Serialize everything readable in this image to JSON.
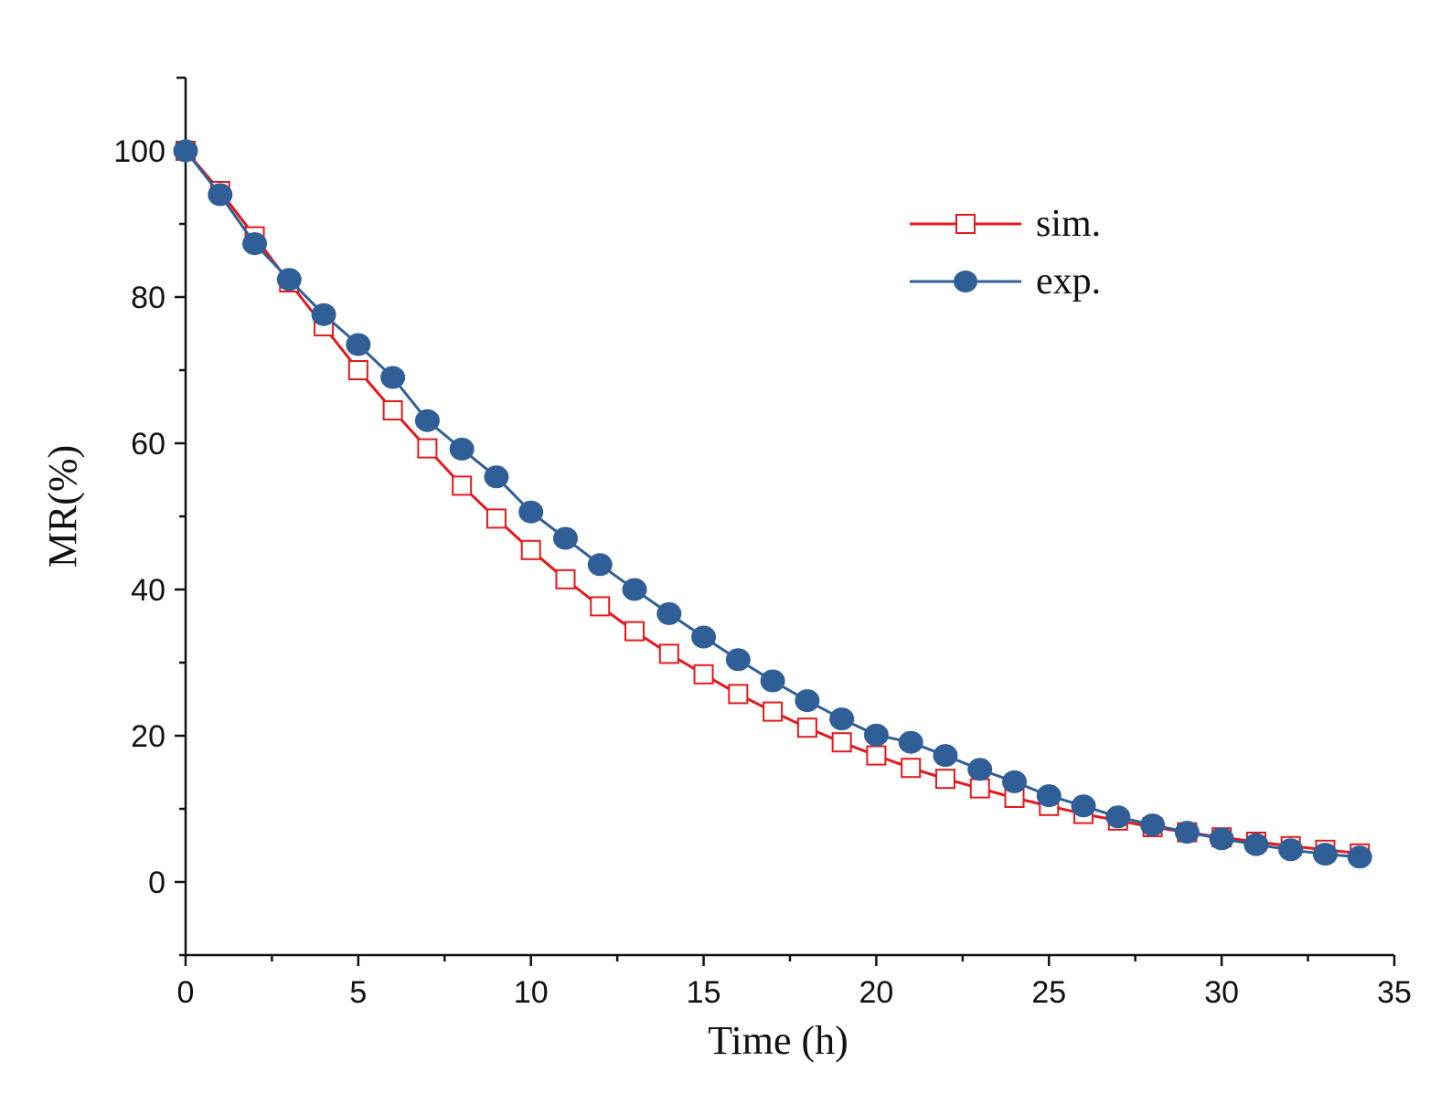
{
  "chart_data": {
    "type": "line",
    "title": "",
    "xlabel": "Time (h)",
    "ylabel": "MR(%)",
    "xlim": [
      0,
      35
    ],
    "ylim": [
      -10,
      110
    ],
    "xticks": [
      0,
      5,
      10,
      15,
      20,
      25,
      30,
      35
    ],
    "yticks": [
      0,
      20,
      40,
      60,
      80,
      100
    ],
    "grid": false,
    "legend": "top-right",
    "x": [
      0,
      1,
      2,
      3,
      4,
      5,
      6,
      7,
      8,
      9,
      10,
      11,
      12,
      13,
      14,
      15,
      16,
      17,
      18,
      19,
      20,
      21,
      22,
      23,
      24,
      25,
      26,
      27,
      28,
      29,
      30,
      31,
      32,
      33,
      34
    ],
    "series": [
      {
        "name": "sim.",
        "color": "#e3191c",
        "marker": "open-square",
        "values": [
          100,
          94.5,
          88.3,
          82,
          76,
          70,
          64.5,
          59.3,
          54.2,
          49.7,
          45.4,
          41.4,
          37.7,
          34.3,
          31.2,
          28.4,
          25.7,
          23.3,
          21.1,
          19.1,
          17.3,
          15.6,
          14.1,
          12.8,
          11.5,
          10.4,
          9.3,
          8.4,
          7.5,
          6.8,
          6.1,
          5.5,
          4.9,
          4.4,
          3.9
        ]
      },
      {
        "name": "exp.",
        "color": "#2f5f96",
        "marker": "filled-circle",
        "values": [
          100,
          94,
          87.3,
          82.4,
          77.6,
          73.5,
          69,
          63.1,
          59.2,
          55.4,
          50.6,
          47,
          43.4,
          40,
          36.7,
          33.5,
          30.4,
          27.5,
          24.8,
          22.3,
          20.1,
          19.1,
          17.3,
          15.4,
          13.7,
          11.8,
          10.4,
          8.9,
          7.8,
          6.8,
          5.9,
          5.1,
          4.4,
          3.8,
          3.4
        ]
      }
    ]
  }
}
